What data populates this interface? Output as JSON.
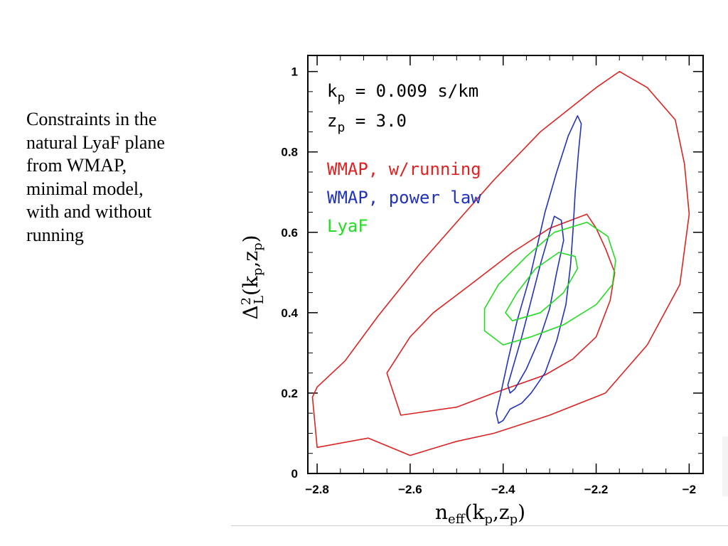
{
  "slide": {
    "caption_lines": [
      "Constraints in the",
      "natural LyaF plane",
      "from WMAP,",
      "minimal model,",
      "with and without",
      "running"
    ]
  },
  "chart_data": {
    "type": "line",
    "description_kind": "contour",
    "xlabel": {
      "base": "n",
      "sub": "eff",
      "args": [
        "k",
        "p",
        "z",
        "p"
      ]
    },
    "ylabel": {
      "base": "Δ",
      "sup": "2",
      "sub": "L",
      "args": [
        "k",
        "p",
        "z",
        "p"
      ]
    },
    "xlim": [
      -2.82,
      -1.97
    ],
    "ylim": [
      0,
      1.04
    ],
    "xticks": [
      -2.8,
      -2.6,
      -2.4,
      -2.2,
      -2
    ],
    "xtick_labels": [
      "−2.8",
      "−2.6",
      "−2.4",
      "−2.2",
      "−2"
    ],
    "yticks": [
      0,
      0.2,
      0.4,
      0.6,
      0.8,
      1
    ],
    "ytick_labels": [
      "0",
      "0.2",
      "0.4",
      "0.6",
      "0.8",
      "1"
    ],
    "grid": false,
    "annotations": [
      {
        "lhs": "k",
        "sub": "p",
        "text": " = 0.009 s/km"
      },
      {
        "lhs": "z",
        "sub": "p",
        "text": " = 3.0"
      }
    ],
    "legend_position": "top-left",
    "series": [
      {
        "name": "WMAP, w/running",
        "color": "#dd2222",
        "contours": [
          [
            [
              -2.8,
              0.065
            ],
            [
              -2.69,
              0.088
            ],
            [
              -2.6,
              0.045
            ],
            [
              -2.5,
              0.08
            ],
            [
              -2.42,
              0.1
            ],
            [
              -2.3,
              0.145
            ],
            [
              -2.18,
              0.2
            ],
            [
              -2.09,
              0.32
            ],
            [
              -2.02,
              0.47
            ],
            [
              -2.0,
              0.645
            ],
            [
              -2.01,
              0.77
            ],
            [
              -2.03,
              0.88
            ],
            [
              -2.09,
              0.96
            ],
            [
              -2.15,
              1.0
            ],
            [
              -2.2,
              0.96
            ],
            [
              -2.32,
              0.85
            ],
            [
              -2.42,
              0.73
            ],
            [
              -2.58,
              0.52
            ],
            [
              -2.67,
              0.39
            ],
            [
              -2.74,
              0.28
            ],
            [
              -2.8,
              0.215
            ],
            [
              -2.81,
              0.19
            ],
            [
              -2.8,
              0.065
            ]
          ],
          [
            [
              -2.62,
              0.145
            ],
            [
              -2.5,
              0.165
            ],
            [
              -2.42,
              0.2
            ],
            [
              -2.31,
              0.245
            ],
            [
              -2.25,
              0.285
            ],
            [
              -2.2,
              0.34
            ],
            [
              -2.17,
              0.43
            ],
            [
              -2.16,
              0.5
            ],
            [
              -2.18,
              0.56
            ],
            [
              -2.2,
              0.61
            ],
            [
              -2.22,
              0.645
            ],
            [
              -2.3,
              0.61
            ],
            [
              -2.38,
              0.55
            ],
            [
              -2.47,
              0.47
            ],
            [
              -2.55,
              0.4
            ],
            [
              -2.6,
              0.34
            ],
            [
              -2.65,
              0.25
            ],
            [
              -2.62,
              0.145
            ]
          ]
        ]
      },
      {
        "name": "WMAP, power law",
        "color": "#2233bb",
        "contours": [
          [
            [
              -2.41,
              0.125
            ],
            [
              -2.4,
              0.132
            ],
            [
              -2.385,
              0.16
            ],
            [
              -2.36,
              0.175
            ],
            [
              -2.34,
              0.2
            ],
            [
              -2.31,
              0.25
            ],
            [
              -2.285,
              0.33
            ],
            [
              -2.265,
              0.42
            ],
            [
              -2.255,
              0.52
            ],
            [
              -2.25,
              0.6
            ],
            [
              -2.245,
              0.7
            ],
            [
              -2.238,
              0.8
            ],
            [
              -2.232,
              0.87
            ],
            [
              -2.24,
              0.89
            ],
            [
              -2.26,
              0.84
            ],
            [
              -2.285,
              0.75
            ],
            [
              -2.31,
              0.65
            ],
            [
              -2.34,
              0.5
            ],
            [
              -2.37,
              0.38
            ],
            [
              -2.39,
              0.28
            ],
            [
              -2.405,
              0.2
            ],
            [
              -2.415,
              0.15
            ],
            [
              -2.41,
              0.125
            ]
          ],
          [
            [
              -2.385,
              0.2
            ],
            [
              -2.375,
              0.21
            ],
            [
              -2.35,
              0.26
            ],
            [
              -2.32,
              0.34
            ],
            [
              -2.3,
              0.41
            ],
            [
              -2.285,
              0.5
            ],
            [
              -2.27,
              0.58
            ],
            [
              -2.275,
              0.63
            ],
            [
              -2.29,
              0.64
            ],
            [
              -2.3,
              0.6
            ],
            [
              -2.32,
              0.52
            ],
            [
              -2.34,
              0.43
            ],
            [
              -2.36,
              0.34
            ],
            [
              -2.38,
              0.26
            ],
            [
              -2.39,
              0.22
            ],
            [
              -2.385,
              0.2
            ]
          ]
        ]
      },
      {
        "name": "LyaF",
        "color": "#22dd22",
        "contours": [
          [
            [
              -2.4,
              0.32
            ],
            [
              -2.34,
              0.34
            ],
            [
              -2.27,
              0.37
            ],
            [
              -2.2,
              0.42
            ],
            [
              -2.165,
              0.47
            ],
            [
              -2.158,
              0.53
            ],
            [
              -2.175,
              0.59
            ],
            [
              -2.22,
              0.625
            ],
            [
              -2.29,
              0.6
            ],
            [
              -2.35,
              0.54
            ],
            [
              -2.41,
              0.47
            ],
            [
              -2.44,
              0.41
            ],
            [
              -2.44,
              0.355
            ],
            [
              -2.4,
              0.32
            ]
          ],
          [
            [
              -2.38,
              0.38
            ],
            [
              -2.32,
              0.4
            ],
            [
              -2.27,
              0.45
            ],
            [
              -2.24,
              0.51
            ],
            [
              -2.245,
              0.54
            ],
            [
              -2.28,
              0.55
            ],
            [
              -2.33,
              0.51
            ],
            [
              -2.37,
              0.45
            ],
            [
              -2.395,
              0.4
            ],
            [
              -2.38,
              0.38
            ]
          ]
        ]
      }
    ]
  }
}
